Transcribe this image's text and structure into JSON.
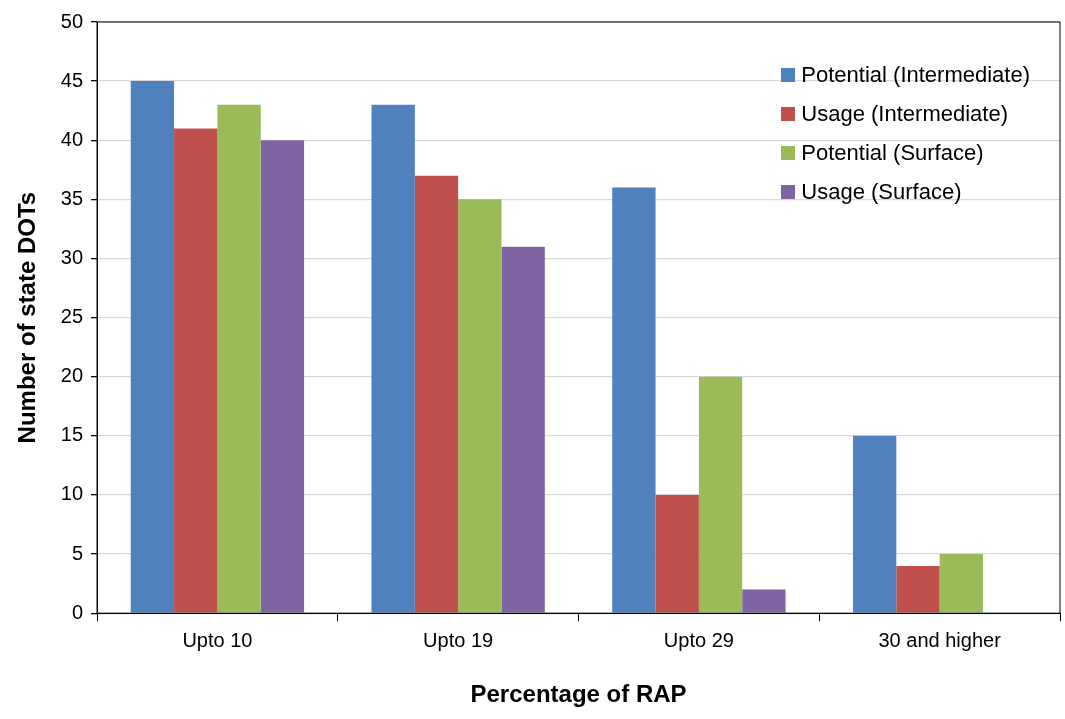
{
  "chart_data": {
    "type": "bar",
    "xlabel": "Percentage of RAP",
    "ylabel": "Number of state DOTs",
    "categories": [
      "Upto 10",
      "Upto 19",
      "Upto 29",
      "30 and higher"
    ],
    "series": [
      {
        "name": "Potential (Intermediate)",
        "color": "#4f81bd",
        "values": [
          45,
          43,
          36,
          15
        ]
      },
      {
        "name": "Usage (Intermediate)",
        "color": "#c0504d",
        "values": [
          41,
          37,
          10,
          4
        ]
      },
      {
        "name": "Potential (Surface)",
        "color": "#9bbb59",
        "values": [
          43,
          35,
          20,
          5
        ]
      },
      {
        "name": "Usage (Surface)",
        "color": "#8064a2",
        "values": [
          40,
          31,
          2,
          0
        ]
      }
    ],
    "ylim": [
      0,
      50
    ],
    "yticks": [
      0,
      5,
      10,
      15,
      20,
      25,
      30,
      35,
      40,
      45,
      50
    ],
    "grid": "y",
    "legend": "top right"
  }
}
